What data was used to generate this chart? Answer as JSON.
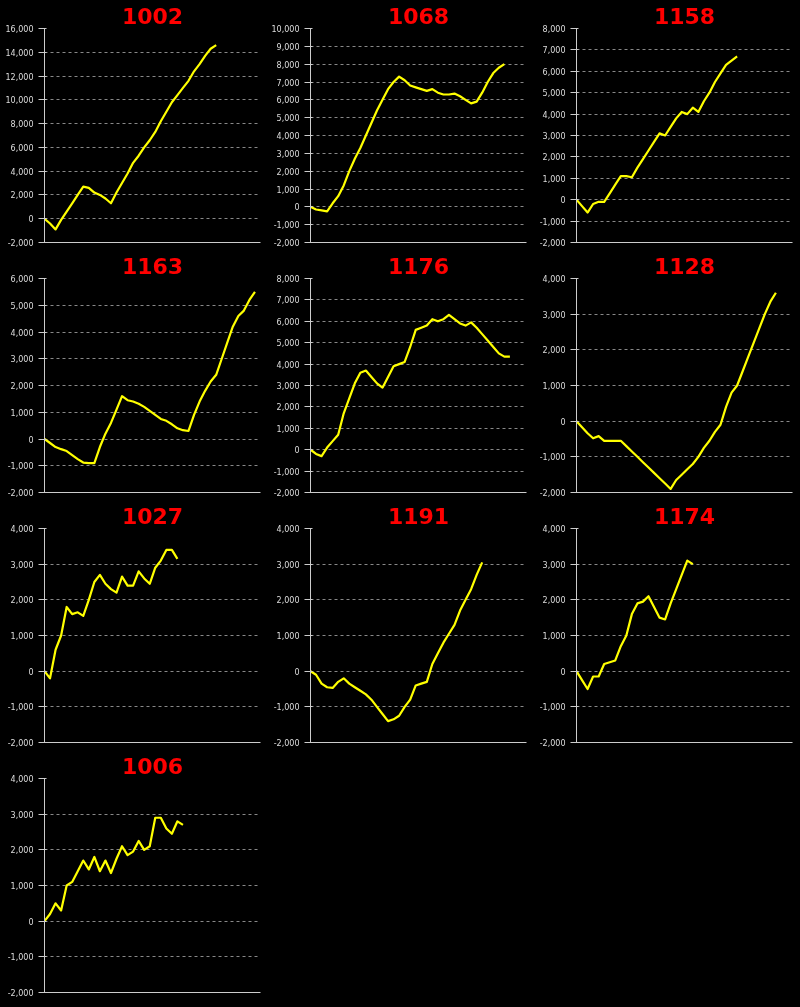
{
  "chart_data": [
    {
      "type": "line",
      "title": "1002",
      "categories": [
        null,
        null,
        null,
        null,
        null,
        null,
        null,
        null,
        null,
        null,
        null,
        null,
        null,
        null,
        null,
        null,
        null,
        null,
        null,
        null,
        null,
        null,
        null,
        null,
        null,
        null,
        null,
        null,
        null,
        null,
        null,
        null,
        null,
        null,
        null,
        null,
        null,
        null,
        null,
        null
      ],
      "series": [
        {
          "color": "#ffff00",
          "values": [
            0,
            -400,
            -900,
            -100,
            600,
            1300,
            2000,
            2700,
            2600,
            2200,
            2000,
            1700,
            1300,
            2200,
            3000,
            3800,
            4700,
            5300,
            6000,
            6600,
            7300,
            8200,
            9000,
            9800,
            10400,
            11000,
            11600,
            12400,
            13000,
            13700,
            14300,
            14600,
            null,
            null,
            null,
            null,
            null,
            null,
            null,
            null
          ]
        }
      ],
      "ylim": [
        -2000,
        16000
      ],
      "yticks": [
        {
          "value": -2000,
          "label": "-2,000"
        },
        {
          "value": 0,
          "label": "0"
        },
        {
          "value": 2000,
          "label": "2,000"
        },
        {
          "value": 4000,
          "label": "4,000"
        },
        {
          "value": 6000,
          "label": "6,000"
        },
        {
          "value": 8000,
          "label": "8,000"
        },
        {
          "value": 10000,
          "label": "10,000"
        },
        {
          "value": 12000,
          "label": "12,000"
        },
        {
          "value": 14000,
          "label": "14,000"
        },
        {
          "value": 16000,
          "label": "16,000"
        }
      ],
      "grid": "y"
    },
    {
      "type": "line",
      "title": "1068",
      "categories": [
        null,
        null,
        null,
        null,
        null,
        null,
        null,
        null,
        null,
        null,
        null,
        null,
        null,
        null,
        null,
        null,
        null,
        null,
        null,
        null,
        null,
        null,
        null,
        null,
        null,
        null,
        null,
        null,
        null,
        null,
        null,
        null,
        null,
        null,
        null,
        null,
        null,
        null,
        null,
        null
      ],
      "series": [
        {
          "color": "#ffff00",
          "values": [
            0,
            -150,
            -200,
            -250,
            200,
            600,
            1200,
            2000,
            2700,
            3300,
            4000,
            4700,
            5400,
            6000,
            6600,
            7000,
            7300,
            7100,
            6800,
            6700,
            6600,
            6500,
            6600,
            6400,
            6300,
            6300,
            6350,
            6200,
            6000,
            5800,
            5900,
            6400,
            7000,
            7500,
            7800,
            8000,
            null,
            null,
            null,
            null
          ]
        }
      ],
      "ylim": [
        -2000,
        10000
      ],
      "yticks": [
        {
          "value": -2000,
          "label": "-2,000"
        },
        {
          "value": -1000,
          "label": "-1,000"
        },
        {
          "value": 0,
          "label": "0"
        },
        {
          "value": 1000,
          "label": "1,000"
        },
        {
          "value": 2000,
          "label": "2,000"
        },
        {
          "value": 3000,
          "label": "3,000"
        },
        {
          "value": 4000,
          "label": "4,000"
        },
        {
          "value": 5000,
          "label": "5,000"
        },
        {
          "value": 6000,
          "label": "6,000"
        },
        {
          "value": 7000,
          "label": "7,000"
        },
        {
          "value": 8000,
          "label": "8,000"
        },
        {
          "value": 9000,
          "label": "9,000"
        },
        {
          "value": 10000,
          "label": "10,000"
        }
      ],
      "grid": "y"
    },
    {
      "type": "line",
      "title": "1158",
      "categories": [
        null,
        null,
        null,
        null,
        null,
        null,
        null,
        null,
        null,
        null,
        null,
        null,
        null,
        null,
        null,
        null,
        null,
        null,
        null,
        null,
        null,
        null,
        null,
        null,
        null,
        null,
        null,
        null,
        null,
        null,
        null,
        null,
        null,
        null,
        null,
        null,
        null,
        null,
        null,
        null
      ],
      "series": [
        {
          "color": "#ffff00",
          "values": [
            0,
            -300,
            -600,
            -200,
            -100,
            -100,
            300,
            700,
            1100,
            1100,
            1050,
            1500,
            1900,
            2300,
            2700,
            3100,
            3000,
            3400,
            3800,
            4100,
            4000,
            4300,
            4100,
            4600,
            5000,
            5500,
            5900,
            6300,
            6500,
            6700,
            null,
            null,
            null,
            null,
            null,
            null,
            null,
            null,
            null,
            null
          ]
        }
      ],
      "ylim": [
        -2000,
        8000
      ],
      "yticks": [
        {
          "value": -2000,
          "label": "-2,000"
        },
        {
          "value": -1000,
          "label": "-1,000"
        },
        {
          "value": 0,
          "label": "0"
        },
        {
          "value": 1000,
          "label": "1,000"
        },
        {
          "value": 2000,
          "label": "2,000"
        },
        {
          "value": 3000,
          "label": "3,000"
        },
        {
          "value": 4000,
          "label": "4,000"
        },
        {
          "value": 5000,
          "label": "5,000"
        },
        {
          "value": 6000,
          "label": "6,000"
        },
        {
          "value": 7000,
          "label": "7,000"
        },
        {
          "value": 8000,
          "label": "8,000"
        }
      ],
      "grid": "y"
    },
    {
      "type": "line",
      "title": "1163",
      "categories": [
        null,
        null,
        null,
        null,
        null,
        null,
        null,
        null,
        null,
        null,
        null,
        null,
        null,
        null,
        null,
        null,
        null,
        null,
        null,
        null,
        null,
        null,
        null,
        null,
        null,
        null,
        null,
        null,
        null,
        null,
        null,
        null,
        null,
        null,
        null,
        null,
        null,
        null,
        null,
        null
      ],
      "series": [
        {
          "color": "#ffff00",
          "values": [
            0,
            -150,
            -300,
            -380,
            -450,
            -600,
            -750,
            -880,
            -900,
            -900,
            -300,
            200,
            600,
            1100,
            1600,
            1450,
            1400,
            1320,
            1200,
            1050,
            900,
            750,
            680,
            550,
            400,
            330,
            300,
            900,
            1400,
            1800,
            2150,
            2400,
            3000,
            3600,
            4200,
            4600,
            4800,
            5200,
            5500,
            null
          ]
        }
      ],
      "ylim": [
        -2000,
        6000
      ],
      "yticks": [
        {
          "value": -2000,
          "label": "-2,000"
        },
        {
          "value": -1000,
          "label": "-1,000"
        },
        {
          "value": 0,
          "label": "0"
        },
        {
          "value": 1000,
          "label": "1,000"
        },
        {
          "value": 2000,
          "label": "2,000"
        },
        {
          "value": 3000,
          "label": "3,000"
        },
        {
          "value": 4000,
          "label": "4,000"
        },
        {
          "value": 5000,
          "label": "5,000"
        },
        {
          "value": 6000,
          "label": "6,000"
        }
      ],
      "grid": "y"
    },
    {
      "type": "line",
      "title": "1176",
      "categories": [
        null,
        null,
        null,
        null,
        null,
        null,
        null,
        null,
        null,
        null,
        null,
        null,
        null,
        null,
        null,
        null,
        null,
        null,
        null,
        null,
        null,
        null,
        null,
        null,
        null,
        null,
        null,
        null,
        null,
        null,
        null,
        null,
        null,
        null,
        null,
        null,
        null,
        null,
        null,
        null
      ],
      "series": [
        {
          "color": "#ffff00",
          "values": [
            0,
            -200,
            -300,
            100,
            400,
            700,
            1700,
            2400,
            3100,
            3600,
            3700,
            3400,
            3100,
            2900,
            3400,
            3900,
            4000,
            4100,
            4800,
            5600,
            5700,
            5800,
            6100,
            6000,
            6100,
            6300,
            6100,
            5900,
            5800,
            5950,
            5700,
            5400,
            5100,
            4800,
            4500,
            4350,
            4350,
            null,
            null,
            null
          ]
        }
      ],
      "ylim": [
        -2000,
        8000
      ],
      "yticks": [
        {
          "value": -2000,
          "label": "-2,000"
        },
        {
          "value": -1000,
          "label": "-1,000"
        },
        {
          "value": 0,
          "label": "0"
        },
        {
          "value": 1000,
          "label": "1,000"
        },
        {
          "value": 2000,
          "label": "2,000"
        },
        {
          "value": 3000,
          "label": "3,000"
        },
        {
          "value": 4000,
          "label": "4,000"
        },
        {
          "value": 5000,
          "label": "5,000"
        },
        {
          "value": 6000,
          "label": "6,000"
        },
        {
          "value": 7000,
          "label": "7,000"
        },
        {
          "value": 8000,
          "label": "8,000"
        }
      ],
      "grid": "y"
    },
    {
      "type": "line",
      "title": "1128",
      "categories": [
        null,
        null,
        null,
        null,
        null,
        null,
        null,
        null,
        null,
        null,
        null,
        null,
        null,
        null,
        null,
        null,
        null,
        null,
        null,
        null,
        null,
        null,
        null,
        null,
        null,
        null,
        null,
        null,
        null,
        null,
        null,
        null,
        null,
        null,
        null,
        null,
        null,
        null,
        null,
        null
      ],
      "series": [
        {
          "color": "#ffff00",
          "values": [
            0,
            -170,
            -340,
            -480,
            -420,
            -550,
            -550,
            -550,
            -550,
            -700,
            -850,
            -1000,
            -1150,
            -1300,
            -1450,
            -1600,
            -1750,
            -1900,
            -1650,
            -1500,
            -1350,
            -1200,
            -1000,
            -750,
            -550,
            -300,
            -100,
            400,
            800,
            1000,
            1400,
            1800,
            2200,
            2600,
            3000,
            3350,
            3600,
            null,
            null,
            null
          ]
        }
      ],
      "ylim": [
        -2000,
        4000
      ],
      "yticks": [
        {
          "value": -2000,
          "label": "-2,000"
        },
        {
          "value": -1000,
          "label": "-1,000"
        },
        {
          "value": 0,
          "label": "0"
        },
        {
          "value": 1000,
          "label": "1,000"
        },
        {
          "value": 2000,
          "label": "2,000"
        },
        {
          "value": 3000,
          "label": "3,000"
        },
        {
          "value": 4000,
          "label": "4,000"
        }
      ],
      "grid": "y"
    },
    {
      "type": "line",
      "title": "1027",
      "categories": [
        null,
        null,
        null,
        null,
        null,
        null,
        null,
        null,
        null,
        null,
        null,
        null,
        null,
        null,
        null,
        null,
        null,
        null,
        null,
        null,
        null,
        null,
        null,
        null,
        null,
        null,
        null,
        null,
        null,
        null,
        null,
        null,
        null,
        null,
        null,
        null,
        null,
        null,
        null,
        null
      ],
      "series": [
        {
          "color": "#ffff00",
          "values": [
            0,
            -200,
            600,
            1000,
            1800,
            1600,
            1650,
            1550,
            2000,
            2500,
            2700,
            2450,
            2300,
            2200,
            2650,
            2400,
            2400,
            2800,
            2600,
            2450,
            2900,
            3100,
            3400,
            3400,
            3150,
            null,
            null,
            null,
            null,
            null,
            null,
            null,
            null,
            null,
            null,
            null,
            null,
            null,
            null,
            null
          ]
        }
      ],
      "ylim": [
        -2000,
        4000
      ],
      "yticks": [
        {
          "value": -2000,
          "label": "-2,000"
        },
        {
          "value": -1000,
          "label": "-1,000"
        },
        {
          "value": 0,
          "label": "0"
        },
        {
          "value": 1000,
          "label": "1,000"
        },
        {
          "value": 2000,
          "label": "2,000"
        },
        {
          "value": 3000,
          "label": "3,000"
        },
        {
          "value": 4000,
          "label": "4,000"
        }
      ],
      "grid": "y"
    },
    {
      "type": "line",
      "title": "1191",
      "categories": [
        null,
        null,
        null,
        null,
        null,
        null,
        null,
        null,
        null,
        null,
        null,
        null,
        null,
        null,
        null,
        null,
        null,
        null,
        null,
        null,
        null,
        null,
        null,
        null,
        null,
        null,
        null,
        null,
        null,
        null,
        null,
        null,
        null,
        null,
        null,
        null,
        null,
        null,
        null,
        null
      ],
      "series": [
        {
          "color": "#ffff00",
          "values": [
            0,
            -100,
            -350,
            -450,
            -470,
            -300,
            -200,
            -350,
            -450,
            -550,
            -650,
            -800,
            -1000,
            -1200,
            -1400,
            -1350,
            -1250,
            -1000,
            -800,
            -400,
            -350,
            -300,
            200,
            500,
            800,
            1050,
            1300,
            1700,
            2000,
            2300,
            2700,
            3050,
            null,
            null,
            null,
            null,
            null,
            null,
            null,
            null
          ]
        }
      ],
      "ylim": [
        -2000,
        4000
      ],
      "yticks": [
        {
          "value": -2000,
          "label": "-2,000"
        },
        {
          "value": -1000,
          "label": "-1,000"
        },
        {
          "value": 0,
          "label": "0"
        },
        {
          "value": 1000,
          "label": "1,000"
        },
        {
          "value": 2000,
          "label": "2,000"
        },
        {
          "value": 3000,
          "label": "3,000"
        },
        {
          "value": 4000,
          "label": "4,000"
        }
      ],
      "grid": "y"
    },
    {
      "type": "line",
      "title": "1174",
      "categories": [
        null,
        null,
        null,
        null,
        null,
        null,
        null,
        null,
        null,
        null,
        null,
        null,
        null,
        null,
        null,
        null,
        null,
        null,
        null,
        null,
        null,
        null,
        null,
        null,
        null,
        null,
        null,
        null,
        null,
        null,
        null,
        null,
        null,
        null,
        null,
        null,
        null,
        null,
        null,
        null
      ],
      "series": [
        {
          "color": "#ffff00",
          "values": [
            0,
            -250,
            -500,
            -150,
            -150,
            200,
            250,
            300,
            700,
            1000,
            1600,
            1900,
            1950,
            2100,
            1800,
            1500,
            1450,
            1900,
            2300,
            2700,
            3100,
            3000,
            null,
            null,
            null,
            null,
            null,
            null,
            null,
            null,
            null,
            null,
            null,
            null,
            null,
            null,
            null,
            null,
            null,
            null
          ]
        }
      ],
      "ylim": [
        -2000,
        4000
      ],
      "yticks": [
        {
          "value": -2000,
          "label": "-2,000"
        },
        {
          "value": -1000,
          "label": "-1,000"
        },
        {
          "value": 0,
          "label": "0"
        },
        {
          "value": 1000,
          "label": "1,000"
        },
        {
          "value": 2000,
          "label": "2,000"
        },
        {
          "value": 3000,
          "label": "3,000"
        },
        {
          "value": 4000,
          "label": "4,000"
        }
      ],
      "grid": "y"
    },
    {
      "type": "line",
      "title": "1006",
      "categories": [
        null,
        null,
        null,
        null,
        null,
        null,
        null,
        null,
        null,
        null,
        null,
        null,
        null,
        null,
        null,
        null,
        null,
        null,
        null,
        null,
        null,
        null,
        null,
        null,
        null,
        null,
        null,
        null,
        null,
        null,
        null,
        null,
        null,
        null,
        null,
        null,
        null,
        null,
        null,
        null
      ],
      "series": [
        {
          "color": "#ffff00",
          "values": [
            0,
            200,
            500,
            300,
            1000,
            1100,
            1400,
            1700,
            1450,
            1800,
            1400,
            1700,
            1350,
            1750,
            2100,
            1850,
            1950,
            2250,
            2000,
            2100,
            2900,
            2900,
            2600,
            2450,
            2800,
            2700,
            null,
            null,
            null,
            null,
            null,
            null,
            null,
            null,
            null,
            null,
            null,
            null,
            null,
            null
          ]
        }
      ],
      "ylim": [
        -2000,
        4000
      ],
      "yticks": [
        {
          "value": -2000,
          "label": "-2,000"
        },
        {
          "value": -1000,
          "label": "-1,000"
        },
        {
          "value": 0,
          "label": "0"
        },
        {
          "value": 1000,
          "label": "1,000"
        },
        {
          "value": 2000,
          "label": "2,000"
        },
        {
          "value": 3000,
          "label": "3,000"
        },
        {
          "value": 4000,
          "label": "4,000"
        }
      ],
      "grid": "y"
    }
  ]
}
